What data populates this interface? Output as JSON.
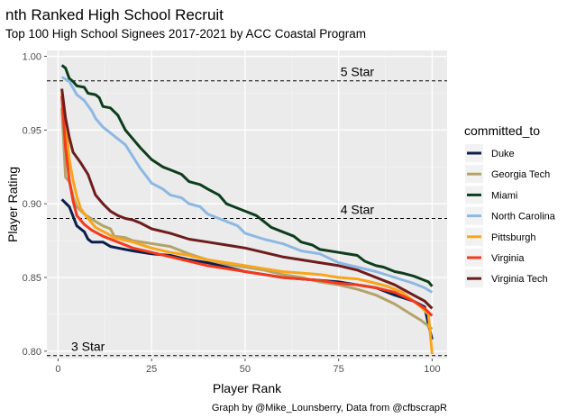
{
  "chart_data": {
    "type": "line",
    "title": "nth Ranked High School Recruit",
    "subtitle": "Top 100 High School Signees 2017-2021 by ACC Coastal Program",
    "xlabel": "Player Rank",
    "ylabel": "Player Rating",
    "caption": "Graph by @Mike_Lounsberry, Data from @cfbscrapR",
    "xlim": [
      -3,
      104
    ],
    "ylim": [
      0.795,
      1.004
    ],
    "x_ticks": [
      0,
      25,
      50,
      75,
      100
    ],
    "x_tick_labels": [
      "0",
      "25",
      "50",
      "75",
      "100"
    ],
    "y_ticks": [
      0.8,
      0.85,
      0.9,
      0.95,
      1.0
    ],
    "y_tick_labels": [
      "0.80",
      "0.85",
      "0.90",
      "0.95",
      "1.00"
    ],
    "grid": true,
    "legend": {
      "title": "committed_to",
      "position": "right"
    },
    "reference_lines": [
      {
        "label": "5 Star",
        "y": 0.9834,
        "label_x": 80
      },
      {
        "label": "4 Star",
        "y": 0.89,
        "label_x": 80
      },
      {
        "label": "3 Star",
        "y": 0.797,
        "label_x": 8
      }
    ],
    "series": [
      {
        "name": "Duke",
        "color": "#0b1f4c",
        "points": [
          [
            1,
            0.903
          ],
          [
            3,
            0.898
          ],
          [
            5,
            0.885
          ],
          [
            7,
            0.881
          ],
          [
            8,
            0.876
          ],
          [
            9,
            0.874
          ],
          [
            12,
            0.874
          ],
          [
            14,
            0.871
          ],
          [
            16,
            0.87
          ],
          [
            20,
            0.868
          ],
          [
            25,
            0.866
          ],
          [
            30,
            0.865
          ],
          [
            35,
            0.862
          ],
          [
            40,
            0.86
          ],
          [
            45,
            0.857
          ],
          [
            50,
            0.854
          ],
          [
            55,
            0.852
          ],
          [
            60,
            0.85
          ],
          [
            65,
            0.849
          ],
          [
            70,
            0.848
          ],
          [
            75,
            0.847
          ],
          [
            80,
            0.845
          ],
          [
            85,
            0.843
          ],
          [
            90,
            0.838
          ],
          [
            95,
            0.834
          ],
          [
            98,
            0.83
          ],
          [
            99,
            0.818
          ],
          [
            100,
            0.808
          ]
        ]
      },
      {
        "name": "Georgia Tech",
        "color": "#b3a369",
        "points": [
          [
            1,
            0.965
          ],
          [
            2,
            0.918
          ],
          [
            3,
            0.915
          ],
          [
            4,
            0.905
          ],
          [
            5,
            0.898
          ],
          [
            7,
            0.893
          ],
          [
            10,
            0.888
          ],
          [
            12,
            0.885
          ],
          [
            14,
            0.883
          ],
          [
            15,
            0.878
          ],
          [
            18,
            0.877
          ],
          [
            20,
            0.875
          ],
          [
            25,
            0.873
          ],
          [
            30,
            0.871
          ],
          [
            35,
            0.866
          ],
          [
            40,
            0.862
          ],
          [
            45,
            0.859
          ],
          [
            50,
            0.857
          ],
          [
            55,
            0.855
          ],
          [
            60,
            0.852
          ],
          [
            65,
            0.85
          ],
          [
            70,
            0.847
          ],
          [
            75,
            0.845
          ],
          [
            80,
            0.842
          ],
          [
            85,
            0.838
          ],
          [
            90,
            0.832
          ],
          [
            95,
            0.824
          ],
          [
            97,
            0.821
          ],
          [
            99,
            0.817
          ],
          [
            100,
            0.815
          ]
        ]
      },
      {
        "name": "Miami",
        "color": "#0d3d1c",
        "points": [
          [
            1,
            0.994
          ],
          [
            2,
            0.992
          ],
          [
            3,
            0.985
          ],
          [
            4,
            0.983
          ],
          [
            5,
            0.98
          ],
          [
            7,
            0.979
          ],
          [
            8,
            0.975
          ],
          [
            10,
            0.974
          ],
          [
            11,
            0.972
          ],
          [
            12,
            0.966
          ],
          [
            14,
            0.965
          ],
          [
            16,
            0.96
          ],
          [
            18,
            0.95
          ],
          [
            20,
            0.944
          ],
          [
            22,
            0.938
          ],
          [
            25,
            0.93
          ],
          [
            28,
            0.925
          ],
          [
            30,
            0.923
          ],
          [
            33,
            0.92
          ],
          [
            35,
            0.915
          ],
          [
            38,
            0.913
          ],
          [
            40,
            0.91
          ],
          [
            43,
            0.906
          ],
          [
            45,
            0.9
          ],
          [
            48,
            0.897
          ],
          [
            50,
            0.895
          ],
          [
            53,
            0.892
          ],
          [
            55,
            0.888
          ],
          [
            57,
            0.884
          ],
          [
            60,
            0.881
          ],
          [
            63,
            0.878
          ],
          [
            65,
            0.874
          ],
          [
            68,
            0.872
          ],
          [
            70,
            0.869
          ],
          [
            75,
            0.867
          ],
          [
            80,
            0.865
          ],
          [
            82,
            0.861
          ],
          [
            85,
            0.858
          ],
          [
            87,
            0.857
          ],
          [
            90,
            0.854
          ],
          [
            92,
            0.853
          ],
          [
            95,
            0.851
          ],
          [
            97,
            0.849
          ],
          [
            99,
            0.847
          ],
          [
            100,
            0.844
          ]
        ]
      },
      {
        "name": "North Carolina",
        "color": "#8db8e3",
        "points": [
          [
            1,
            0.986
          ],
          [
            3,
            0.983
          ],
          [
            5,
            0.974
          ],
          [
            7,
            0.97
          ],
          [
            9,
            0.963
          ],
          [
            10,
            0.958
          ],
          [
            12,
            0.952
          ],
          [
            14,
            0.948
          ],
          [
            16,
            0.944
          ],
          [
            18,
            0.94
          ],
          [
            20,
            0.932
          ],
          [
            22,
            0.924
          ],
          [
            25,
            0.914
          ],
          [
            28,
            0.91
          ],
          [
            30,
            0.906
          ],
          [
            33,
            0.904
          ],
          [
            35,
            0.9
          ],
          [
            38,
            0.898
          ],
          [
            40,
            0.893
          ],
          [
            42,
            0.891
          ],
          [
            45,
            0.888
          ],
          [
            48,
            0.885
          ],
          [
            50,
            0.88
          ],
          [
            55,
            0.876
          ],
          [
            60,
            0.873
          ],
          [
            65,
            0.868
          ],
          [
            70,
            0.866
          ],
          [
            75,
            0.86
          ],
          [
            80,
            0.857
          ],
          [
            85,
            0.854
          ],
          [
            90,
            0.85
          ],
          [
            95,
            0.846
          ],
          [
            98,
            0.843
          ],
          [
            100,
            0.84
          ]
        ]
      },
      {
        "name": "Pittsburgh",
        "color": "#f9a51b",
        "points": [
          [
            1,
            0.975
          ],
          [
            2,
            0.955
          ],
          [
            3,
            0.93
          ],
          [
            4,
            0.916
          ],
          [
            5,
            0.905
          ],
          [
            6,
            0.897
          ],
          [
            8,
            0.89
          ],
          [
            10,
            0.884
          ],
          [
            13,
            0.88
          ],
          [
            15,
            0.877
          ],
          [
            20,
            0.874
          ],
          [
            25,
            0.87
          ],
          [
            30,
            0.867
          ],
          [
            35,
            0.865
          ],
          [
            40,
            0.862
          ],
          [
            45,
            0.86
          ],
          [
            50,
            0.858
          ],
          [
            55,
            0.856
          ],
          [
            60,
            0.854
          ],
          [
            65,
            0.853
          ],
          [
            70,
            0.852
          ],
          [
            75,
            0.85
          ],
          [
            80,
            0.849
          ],
          [
            85,
            0.846
          ],
          [
            88,
            0.844
          ],
          [
            92,
            0.84
          ],
          [
            95,
            0.834
          ],
          [
            97,
            0.83
          ],
          [
            99,
            0.825
          ],
          [
            100,
            0.798
          ]
        ]
      },
      {
        "name": "Virginia",
        "color": "#f4391d",
        "points": [
          [
            1,
            0.973
          ],
          [
            2,
            0.938
          ],
          [
            3,
            0.916
          ],
          [
            4,
            0.902
          ],
          [
            5,
            0.892
          ],
          [
            7,
            0.886
          ],
          [
            9,
            0.882
          ],
          [
            12,
            0.878
          ],
          [
            15,
            0.875
          ],
          [
            20,
            0.87
          ],
          [
            25,
            0.867
          ],
          [
            30,
            0.864
          ],
          [
            35,
            0.861
          ],
          [
            40,
            0.858
          ],
          [
            45,
            0.856
          ],
          [
            50,
            0.854
          ],
          [
            55,
            0.852
          ],
          [
            60,
            0.85
          ],
          [
            65,
            0.849
          ],
          [
            70,
            0.848
          ],
          [
            75,
            0.846
          ],
          [
            80,
            0.845
          ],
          [
            85,
            0.843
          ],
          [
            90,
            0.84
          ],
          [
            95,
            0.834
          ],
          [
            98,
            0.829
          ],
          [
            100,
            0.824
          ]
        ]
      },
      {
        "name": "Virginia Tech",
        "color": "#6e1c1c",
        "points": [
          [
            1,
            0.978
          ],
          [
            2,
            0.958
          ],
          [
            3,
            0.945
          ],
          [
            4,
            0.935
          ],
          [
            6,
            0.928
          ],
          [
            8,
            0.92
          ],
          [
            10,
            0.906
          ],
          [
            12,
            0.9
          ],
          [
            14,
            0.895
          ],
          [
            16,
            0.892
          ],
          [
            18,
            0.89
          ],
          [
            20,
            0.889
          ],
          [
            22,
            0.887
          ],
          [
            25,
            0.883
          ],
          [
            30,
            0.88
          ],
          [
            35,
            0.876
          ],
          [
            40,
            0.874
          ],
          [
            45,
            0.872
          ],
          [
            50,
            0.87
          ],
          [
            55,
            0.867
          ],
          [
            60,
            0.864
          ],
          [
            65,
            0.862
          ],
          [
            70,
            0.86
          ],
          [
            75,
            0.858
          ],
          [
            80,
            0.855
          ],
          [
            85,
            0.85
          ],
          [
            90,
            0.845
          ],
          [
            95,
            0.838
          ],
          [
            98,
            0.834
          ],
          [
            100,
            0.829
          ]
        ]
      }
    ]
  }
}
